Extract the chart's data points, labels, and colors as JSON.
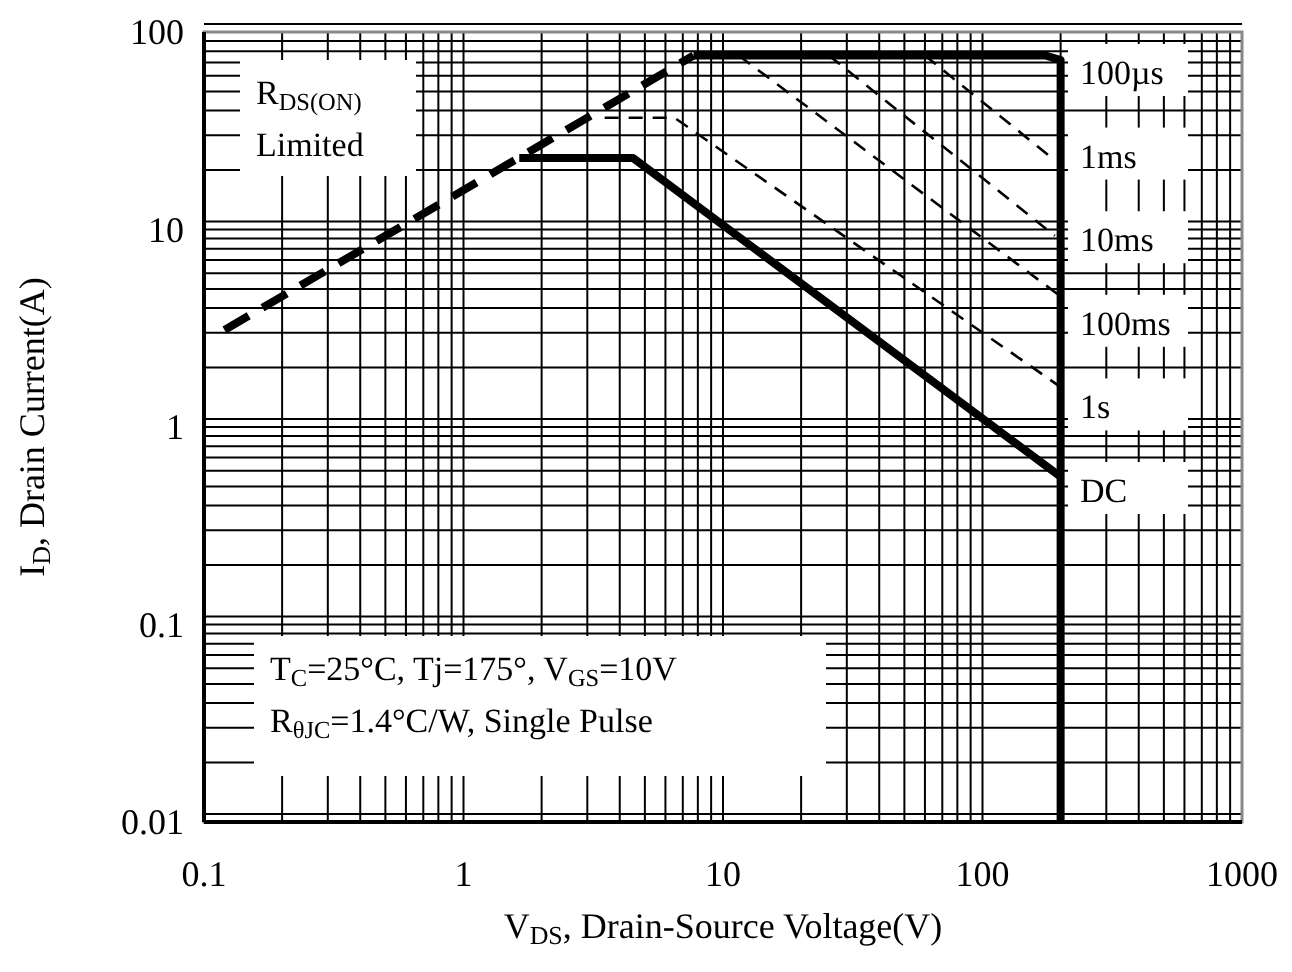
{
  "chart_data": {
    "type": "line",
    "xlabel": "V$_{DS}$, Drain-Source Voltage(V)",
    "ylabel": "I$_{D}$, Drain Current(A)",
    "log": "xy",
    "grid": true,
    "xlim": [
      0.1,
      1000
    ],
    "ylim": [
      0.01,
      100
    ],
    "xticks": [
      0.1,
      1,
      10,
      100,
      1000
    ],
    "yticks": [
      0.01,
      0.1,
      1,
      10,
      100
    ],
    "annotations": [
      "R$_{DS(ON)}$\nLimited",
      "T$_{C}$=25°C, Tj=175°, V$_{GS}$=10V\nR$_{θJC}$=1.4°C/W, Single Pulse"
    ],
    "series": [
      {
        "color": "#000000",
        "line_style": "dashed",
        "x": [
          0.12,
          7.7
        ],
        "values": [
          3.1,
          76
        ]
      },
      {
        "name": "100µs",
        "color": "#000000",
        "line_style": "solid",
        "x": [
          7.7,
          175,
          200,
          200
        ],
        "values": [
          76,
          76,
          72,
          0.01
        ]
      },
      {
        "name": "1ms",
        "color": "#000000",
        "line_style": "dashed",
        "x": [
          60,
          190
        ],
        "values": [
          76,
          22.4
        ]
      },
      {
        "name": "10ms",
        "color": "#000000",
        "line_style": "dashed",
        "x": [
          25.6,
          190
        ],
        "values": [
          76,
          9.3
        ]
      },
      {
        "name": "100ms",
        "color": "#000000",
        "line_style": "dashed",
        "x": [
          11.5,
          195
        ],
        "values": [
          76,
          4.7
        ]
      },
      {
        "name": "1s",
        "color": "#000000",
        "line_style": "dashed",
        "x": [
          3.5,
          6.5,
          195
        ],
        "values": [
          36.8,
          36.8,
          1.63
        ]
      },
      {
        "name": "DC",
        "color": "#000000",
        "line_style": "solid",
        "x": [
          1.64,
          4.5,
          200
        ],
        "values": [
          23,
          23,
          0.56
        ]
      }
    ]
  }
}
